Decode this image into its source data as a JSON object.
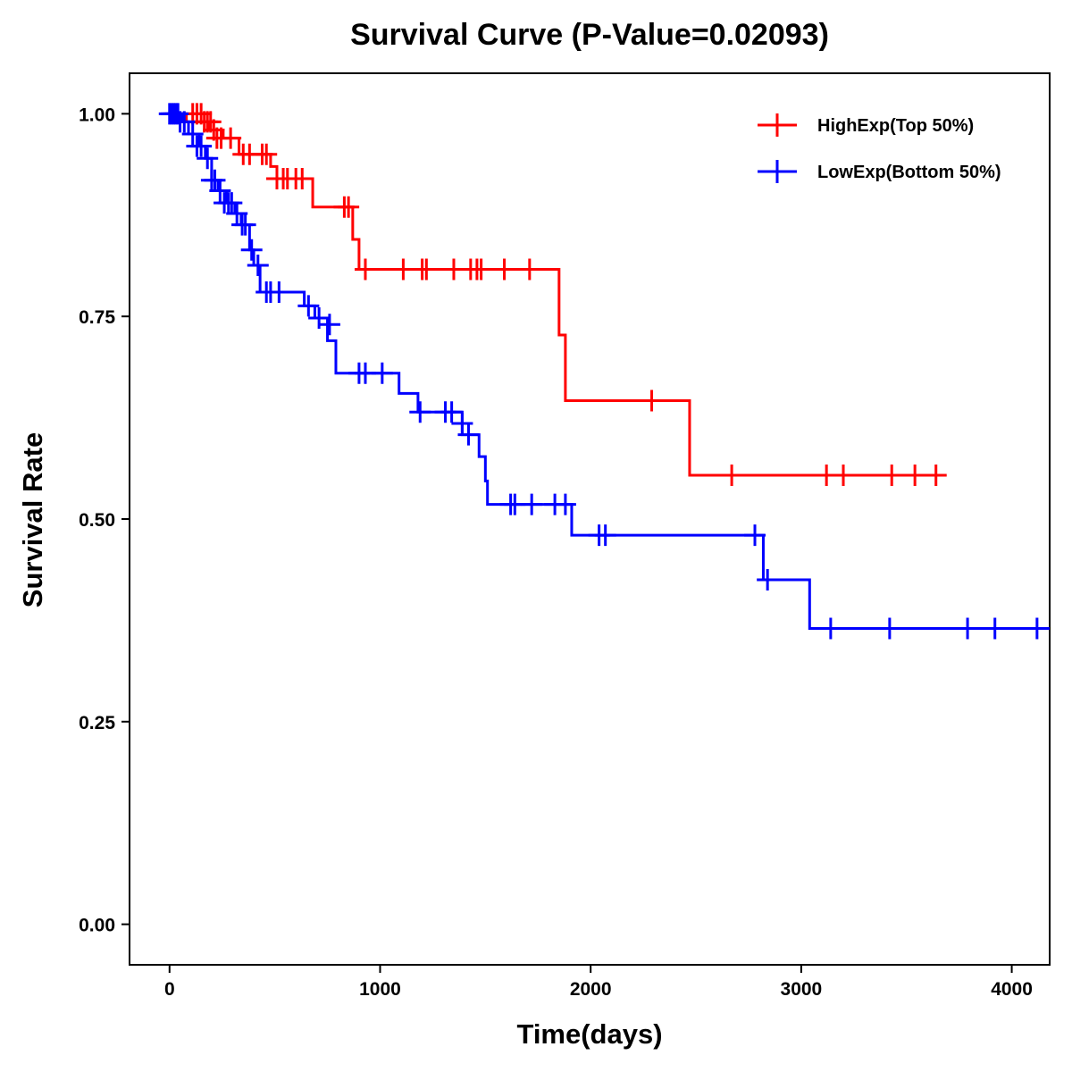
{
  "chart_data": {
    "type": "line",
    "subtype": "kaplan-meier step survival curve",
    "title": "Survival Curve (P-Value=0.02093)",
    "xlabel": "Time(days)",
    "ylabel": "Survival Rate",
    "xlim": [
      -190,
      4180
    ],
    "ylim": [
      -0.05,
      1.05
    ],
    "xticks": [
      {
        "value": 0,
        "label": "0"
      },
      {
        "value": 1000,
        "label": "1000"
      },
      {
        "value": 2000,
        "label": "2000"
      },
      {
        "value": 3000,
        "label": "3000"
      },
      {
        "value": 4000,
        "label": "4000"
      }
    ],
    "yticks": [
      {
        "value": 0,
        "label": "0.00"
      },
      {
        "value": 0.25,
        "label": "0.25"
      },
      {
        "value": 0.5,
        "label": "0.50"
      },
      {
        "value": 0.75,
        "label": "0.75"
      },
      {
        "value": 1.0,
        "label": "1.00"
      }
    ],
    "legend_position": "top-right",
    "series": [
      {
        "name": "HighExp(Top 50%)",
        "color": "#ff0000",
        "steps": [
          [
            0,
            1.0
          ],
          [
            80,
            0.99
          ],
          [
            190,
            0.98
          ],
          [
            255,
            0.97
          ],
          [
            330,
            0.95
          ],
          [
            480,
            0.935
          ],
          [
            510,
            0.92
          ],
          [
            680,
            0.885
          ],
          [
            870,
            0.845
          ],
          [
            900,
            0.808
          ],
          [
            1850,
            0.727
          ],
          [
            1880,
            0.646
          ],
          [
            2470,
            0.554
          ],
          [
            3670,
            0.554
          ]
        ],
        "censors": [
          [
            110,
            1.0
          ],
          [
            130,
            1.0
          ],
          [
            150,
            1.0
          ],
          [
            165,
            0.99
          ],
          [
            180,
            0.99
          ],
          [
            195,
            0.99
          ],
          [
            210,
            0.98
          ],
          [
            225,
            0.97
          ],
          [
            245,
            0.97
          ],
          [
            290,
            0.97
          ],
          [
            350,
            0.95
          ],
          [
            380,
            0.95
          ],
          [
            440,
            0.95
          ],
          [
            460,
            0.95
          ],
          [
            510,
            0.92
          ],
          [
            540,
            0.92
          ],
          [
            560,
            0.92
          ],
          [
            600,
            0.92
          ],
          [
            630,
            0.92
          ],
          [
            830,
            0.885
          ],
          [
            850,
            0.885
          ],
          [
            930,
            0.808
          ],
          [
            1110,
            0.808
          ],
          [
            1200,
            0.808
          ],
          [
            1220,
            0.808
          ],
          [
            1350,
            0.808
          ],
          [
            1430,
            0.808
          ],
          [
            1460,
            0.808
          ],
          [
            1480,
            0.808
          ],
          [
            1590,
            0.808
          ],
          [
            1710,
            0.808
          ],
          [
            2290,
            0.646
          ],
          [
            2670,
            0.554
          ],
          [
            3120,
            0.554
          ],
          [
            3200,
            0.554
          ],
          [
            3430,
            0.554
          ],
          [
            3540,
            0.554
          ],
          [
            3640,
            0.554
          ]
        ]
      },
      {
        "name": "LowExp(Bottom 50%)",
        "color": "#0000ff",
        "steps": [
          [
            0,
            1.0
          ],
          [
            60,
            0.99
          ],
          [
            90,
            0.975
          ],
          [
            140,
            0.96
          ],
          [
            170,
            0.945
          ],
          [
            200,
            0.918
          ],
          [
            230,
            0.905
          ],
          [
            270,
            0.89
          ],
          [
            310,
            0.877
          ],
          [
            340,
            0.863
          ],
          [
            380,
            0.832
          ],
          [
            400,
            0.813
          ],
          [
            430,
            0.78
          ],
          [
            640,
            0.763
          ],
          [
            690,
            0.748
          ],
          [
            750,
            0.72
          ],
          [
            790,
            0.68
          ],
          [
            1090,
            0.655
          ],
          [
            1180,
            0.632
          ],
          [
            1390,
            0.604
          ],
          [
            1470,
            0.577
          ],
          [
            1500,
            0.547
          ],
          [
            1510,
            0.518
          ],
          [
            1910,
            0.48
          ],
          [
            2820,
            0.425
          ],
          [
            3040,
            0.365
          ],
          [
            4180,
            0.365
          ]
        ],
        "censors": [
          [
            0,
            1.0
          ],
          [
            10,
            1.0
          ],
          [
            20,
            1.0
          ],
          [
            30,
            1.0
          ],
          [
            40,
            1.0
          ],
          [
            50,
            0.99
          ],
          [
            70,
            0.99
          ],
          [
            110,
            0.975
          ],
          [
            130,
            0.96
          ],
          [
            150,
            0.96
          ],
          [
            180,
            0.945
          ],
          [
            200,
            0.918
          ],
          [
            215,
            0.918
          ],
          [
            240,
            0.905
          ],
          [
            260,
            0.89
          ],
          [
            280,
            0.89
          ],
          [
            295,
            0.89
          ],
          [
            320,
            0.877
          ],
          [
            345,
            0.863
          ],
          [
            360,
            0.863
          ],
          [
            390,
            0.832
          ],
          [
            420,
            0.813
          ],
          [
            460,
            0.78
          ],
          [
            480,
            0.78
          ],
          [
            520,
            0.78
          ],
          [
            660,
            0.763
          ],
          [
            710,
            0.748
          ],
          [
            760,
            0.74
          ],
          [
            900,
            0.68
          ],
          [
            930,
            0.68
          ],
          [
            1010,
            0.68
          ],
          [
            1190,
            0.632
          ],
          [
            1310,
            0.632
          ],
          [
            1340,
            0.632
          ],
          [
            1390,
            0.618
          ],
          [
            1420,
            0.604
          ],
          [
            1620,
            0.518
          ],
          [
            1640,
            0.518
          ],
          [
            1720,
            0.518
          ],
          [
            1830,
            0.518
          ],
          [
            1880,
            0.518
          ],
          [
            2040,
            0.48
          ],
          [
            2070,
            0.48
          ],
          [
            2780,
            0.48
          ],
          [
            2840,
            0.425
          ],
          [
            3140,
            0.365
          ],
          [
            3420,
            0.365
          ],
          [
            3790,
            0.365
          ],
          [
            3920,
            0.365
          ],
          [
            4120,
            0.365
          ]
        ]
      }
    ]
  }
}
